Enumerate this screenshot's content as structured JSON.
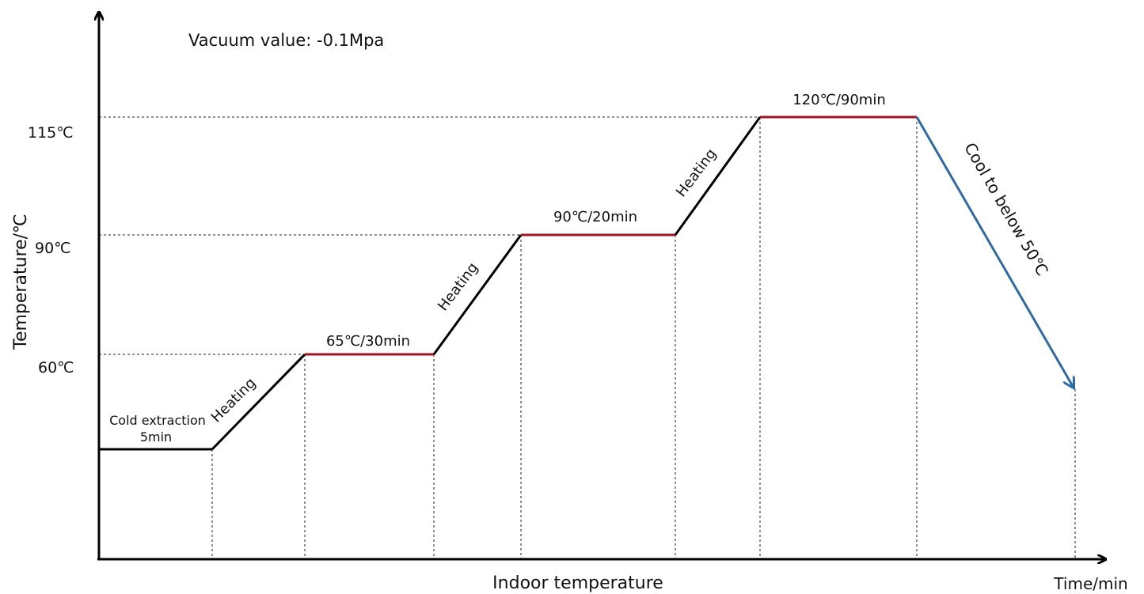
{
  "diagram": {
    "vacuum_label": "Vacuum value: -0.1Mpa",
    "y_axis_label": "Temperature/℃",
    "x_axis_label": "Indoor temperature",
    "x_axis_end_label": "Time/min",
    "y_ticks": [
      "115℃",
      "90℃",
      "60℃"
    ],
    "stage_labels": {
      "cold_extraction_line1": "Cold extraction",
      "cold_extraction_line2": "5min",
      "hold_65": "65℃/30min",
      "hold_90": "90℃/20min",
      "hold_120": "120℃/90min"
    },
    "heating_label": "Heating",
    "cooling_label": "Cool to below 50℃",
    "colors": {
      "hold_line": "#a01423",
      "cool_line": "#2f6aa3",
      "ramp_line": "#000000"
    }
  }
}
